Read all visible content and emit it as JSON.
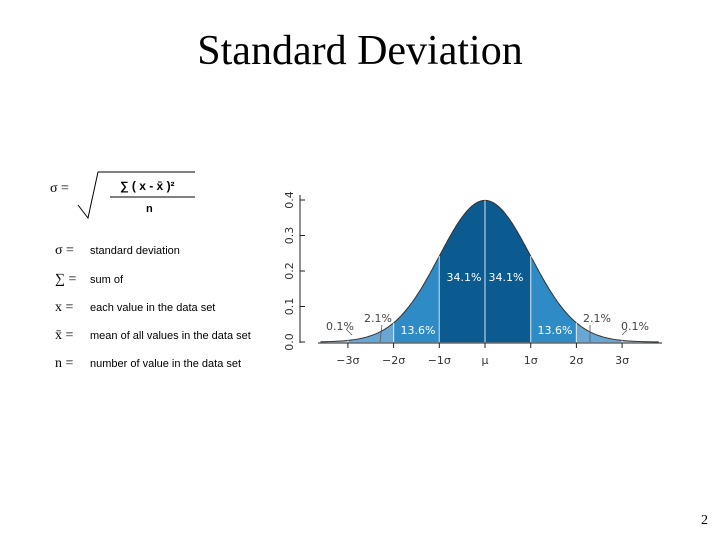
{
  "title": "Standard Deviation",
  "formula": {
    "lhs": "σ =",
    "numerator": "∑ ( x - x̄ )²",
    "denominator": "n"
  },
  "legend": [
    {
      "symbol": "σ =",
      "text": "standard deviation"
    },
    {
      "symbol": "∑ =",
      "text": "sum of"
    },
    {
      "symbol": "x =",
      "text": "each value in the data set"
    },
    {
      "symbol": "x̄ =",
      "text": "mean of all values in the data set"
    },
    {
      "symbol": "n =",
      "text": "number of value in the data set"
    }
  ],
  "figure": {
    "y_axis_ticks": [
      "0.0",
      "0.1",
      "0.2",
      "0.3",
      "0.4"
    ],
    "x_axis_ticks": [
      "−3σ",
      "−2σ",
      "−1σ",
      "μ",
      "1σ",
      "2σ",
      "3σ"
    ],
    "region_labels": [
      "0.1%",
      "2.1%",
      "13.6%",
      "34.1%",
      "34.1%",
      "13.6%",
      "2.1%",
      "0.1%"
    ]
  },
  "page_number": "2"
}
